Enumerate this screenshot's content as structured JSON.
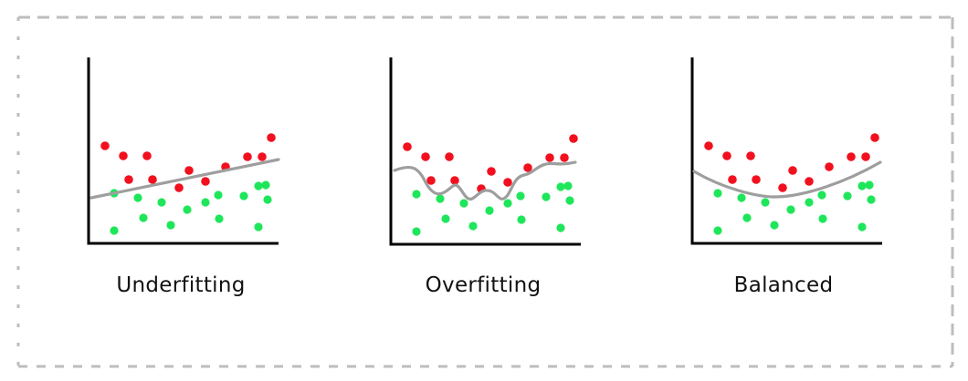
{
  "colors": {
    "frame": "#bdbdbd",
    "axis": "#000000",
    "curve": "#9e9e9e",
    "red_points": "#f2101e",
    "green_points": "#1ee65a"
  },
  "panels": [
    {
      "caption": "Underfitting",
      "fit": "straight line"
    },
    {
      "caption": "Overfitting",
      "fit": "wiggly curve"
    },
    {
      "caption": "Balanced",
      "fit": "smooth curve"
    }
  ]
}
